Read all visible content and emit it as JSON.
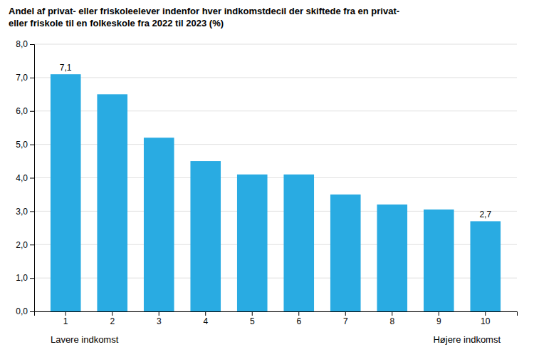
{
  "chart_data": {
    "type": "bar",
    "title": [
      "Andel af privat- eller friskoleelever indenfor hver indkomstdecil der skiftede fra en privat-",
      "eller friskole til en folkeskole fra 2022 til 2023 (%)"
    ],
    "categories": [
      "1",
      "2",
      "3",
      "4",
      "5",
      "6",
      "7",
      "8",
      "9",
      "10"
    ],
    "values": [
      7.1,
      6.5,
      5.2,
      4.5,
      4.1,
      4.1,
      3.5,
      3.2,
      3.05,
      2.7
    ],
    "color": "#29ABE2",
    "ylim": [
      0,
      8.0
    ],
    "yticks": [
      {
        "value": 0.0,
        "label": "0,0"
      },
      {
        "value": 1.0,
        "label": "1,0"
      },
      {
        "value": 2.0,
        "label": "2,0"
      },
      {
        "value": 3.0,
        "label": "3,0"
      },
      {
        "value": 4.0,
        "label": "4,0"
      },
      {
        "value": 5.0,
        "label": "5,0"
      },
      {
        "value": 6.0,
        "label": "6,0"
      },
      {
        "value": 7.0,
        "label": "7,0"
      },
      {
        "value": 8.0,
        "label": "8,0"
      }
    ],
    "grid": true,
    "xlabel": {
      "left": "Lavere indkomst",
      "right": "Højere indkomst"
    },
    "annotations": [
      {
        "category": "1",
        "value": 7.1,
        "text": "7,1"
      },
      {
        "category": "10",
        "value": 2.7,
        "text": "2,7"
      }
    ]
  }
}
